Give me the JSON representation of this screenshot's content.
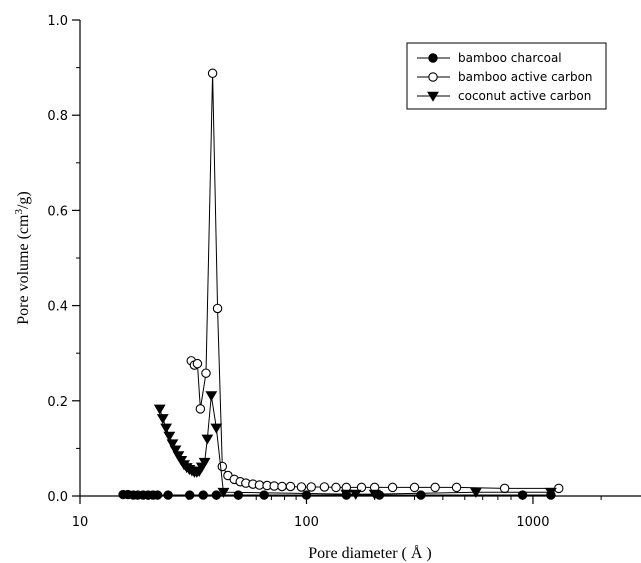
{
  "chart_data": {
    "type": "line",
    "x_scale": "log",
    "xlim": [
      10,
      3000
    ],
    "ylim": [
      0,
      1.0
    ],
    "x_ticks": [
      10,
      100,
      1000
    ],
    "x_tick_labels": [
      "10",
      "100",
      "1000"
    ],
    "y_ticks": [
      0.0,
      0.2,
      0.4,
      0.6,
      0.8,
      1.0
    ],
    "y_tick_labels": [
      "0.0",
      "0.2",
      "0.4",
      "0.6",
      "0.8",
      "1.0"
    ],
    "xlabel": "Pore diameter ( Å )",
    "ylabel_main": "Pore volume (cm",
    "ylabel_sup": "3",
    "ylabel_tail": "/g)",
    "grid": false,
    "legend_position": "top-right",
    "series": [
      {
        "name": "bamboo charcoal",
        "marker": "filled-circle",
        "points": [
          [
            15.5,
            0.003
          ],
          [
            16.3,
            0.003
          ],
          [
            17.2,
            0.002
          ],
          [
            18.0,
            0.002
          ],
          [
            19.0,
            0.002
          ],
          [
            20.0,
            0.002
          ],
          [
            21.0,
            0.002
          ],
          [
            22.0,
            0.002
          ],
          [
            24.5,
            0.002
          ],
          [
            30.5,
            0.002
          ],
          [
            35.0,
            0.002
          ],
          [
            40.0,
            0.002
          ],
          [
            50.0,
            0.002
          ],
          [
            65.0,
            0.002
          ],
          [
            100.0,
            0.002
          ],
          [
            150.0,
            0.002
          ],
          [
            210.0,
            0.002
          ],
          [
            320.0,
            0.002
          ],
          [
            900.0,
            0.002
          ],
          [
            1200.0,
            0.002
          ]
        ]
      },
      {
        "name": "bamboo active carbon",
        "marker": "open-circle",
        "points": [
          [
            31.0,
            0.284
          ],
          [
            32.0,
            0.275
          ],
          [
            33.0,
            0.278
          ],
          [
            34.0,
            0.183
          ],
          [
            36.0,
            0.258
          ],
          [
            38.5,
            0.888
          ],
          [
            40.5,
            0.394
          ],
          [
            42.5,
            0.062
          ],
          [
            45.0,
            0.043
          ],
          [
            48.0,
            0.035
          ],
          [
            51.0,
            0.03
          ],
          [
            54.0,
            0.027
          ],
          [
            58.0,
            0.025
          ],
          [
            62.0,
            0.023
          ],
          [
            67.0,
            0.022
          ],
          [
            72.0,
            0.021
          ],
          [
            78.0,
            0.02
          ],
          [
            85.0,
            0.02
          ],
          [
            95.0,
            0.019
          ],
          [
            105.0,
            0.019
          ],
          [
            120.0,
            0.019
          ],
          [
            135.0,
            0.018
          ],
          [
            150.0,
            0.018
          ],
          [
            175.0,
            0.018
          ],
          [
            200.0,
            0.018
          ],
          [
            240.0,
            0.018
          ],
          [
            300.0,
            0.018
          ],
          [
            370.0,
            0.018
          ],
          [
            460.0,
            0.018
          ],
          [
            750.0,
            0.016
          ],
          [
            1300.0,
            0.016
          ]
        ]
      },
      {
        "name": "coconut active carbon",
        "marker": "filled-triangle-down",
        "points": [
          [
            22.5,
            0.183
          ],
          [
            23.2,
            0.163
          ],
          [
            24.0,
            0.143
          ],
          [
            24.8,
            0.126
          ],
          [
            25.6,
            0.11
          ],
          [
            26.4,
            0.097
          ],
          [
            27.2,
            0.085
          ],
          [
            28.0,
            0.075
          ],
          [
            28.8,
            0.066
          ],
          [
            29.6,
            0.06
          ],
          [
            30.4,
            0.056
          ],
          [
            31.2,
            0.053
          ],
          [
            32.0,
            0.05
          ],
          [
            32.8,
            0.05
          ],
          [
            33.6,
            0.052
          ],
          [
            34.5,
            0.061
          ],
          [
            35.5,
            0.071
          ],
          [
            36.5,
            0.12
          ],
          [
            38.0,
            0.211
          ],
          [
            40.0,
            0.143
          ],
          [
            43.0,
            0.008
          ],
          [
            150.0,
            0.004
          ],
          [
            165.0,
            0.004
          ],
          [
            200.0,
            0.004
          ],
          [
            560.0,
            0.008
          ],
          [
            1200.0,
            0.008
          ]
        ]
      }
    ]
  }
}
